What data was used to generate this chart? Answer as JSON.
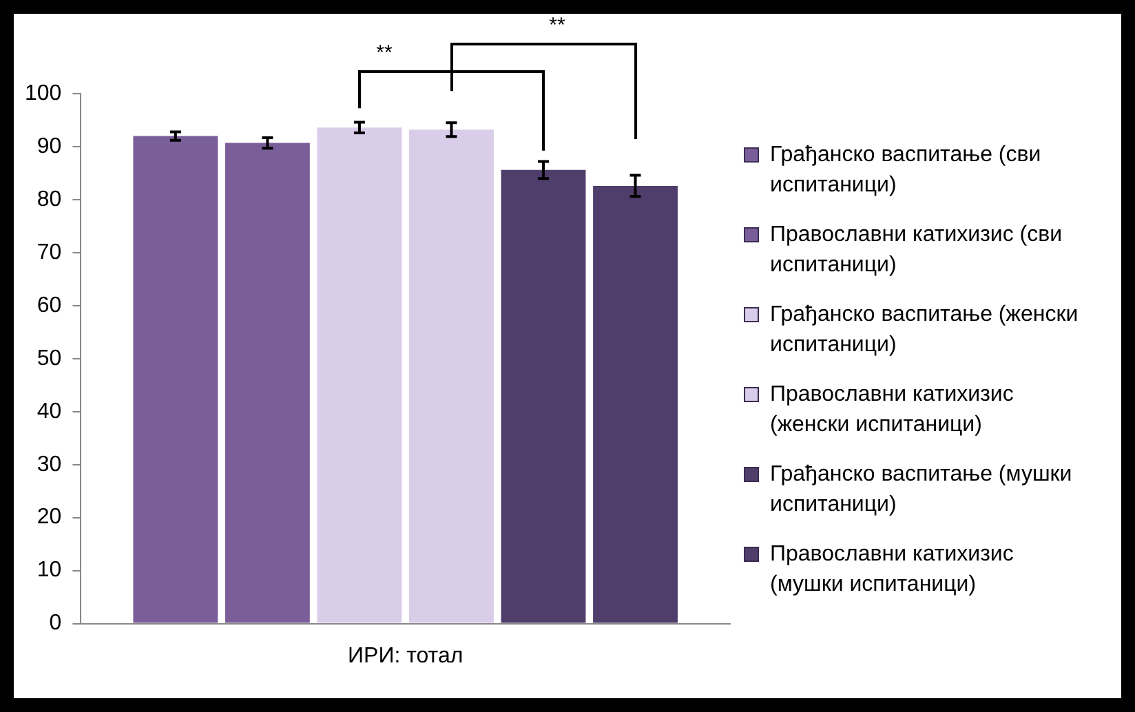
{
  "chart_data": {
    "type": "bar",
    "categories": [
      "ИРИ: тотал"
    ],
    "series": [
      {
        "name": "Грађанско васпитање (сви испитаници)",
        "color": "#7a5e9a",
        "values": [
          92.0
        ],
        "errors": [
          0.8
        ]
      },
      {
        "name": "Православни катихизис (сви испитаници)",
        "color": "#7a5e9a",
        "values": [
          90.7
        ],
        "errors": [
          1.0
        ]
      },
      {
        "name": "Грађанско васпитање (женски испитаници)",
        "color": "#d9cdea",
        "values": [
          93.6
        ],
        "errors": [
          1.0
        ]
      },
      {
        "name": "Православни катихизис (женски испитаници)",
        "color": "#d9cdea",
        "values": [
          93.2
        ],
        "errors": [
          1.3
        ]
      },
      {
        "name": "Грађанско васпитање (мушки испитаници)",
        "color": "#4f3d6b",
        "values": [
          85.6
        ],
        "errors": [
          1.6
        ]
      },
      {
        "name": "Православни катихизис (мушки испитаници)",
        "color": "#4f3d6b",
        "values": [
          82.6
        ],
        "errors": [
          2.0
        ]
      }
    ],
    "annotations": [
      "**",
      "**"
    ],
    "ylim": [
      0,
      100
    ],
    "yticks": [
      0,
      10,
      20,
      30,
      40,
      50,
      60,
      70,
      80,
      90,
      100
    ],
    "grid": false,
    "legend": "right"
  }
}
